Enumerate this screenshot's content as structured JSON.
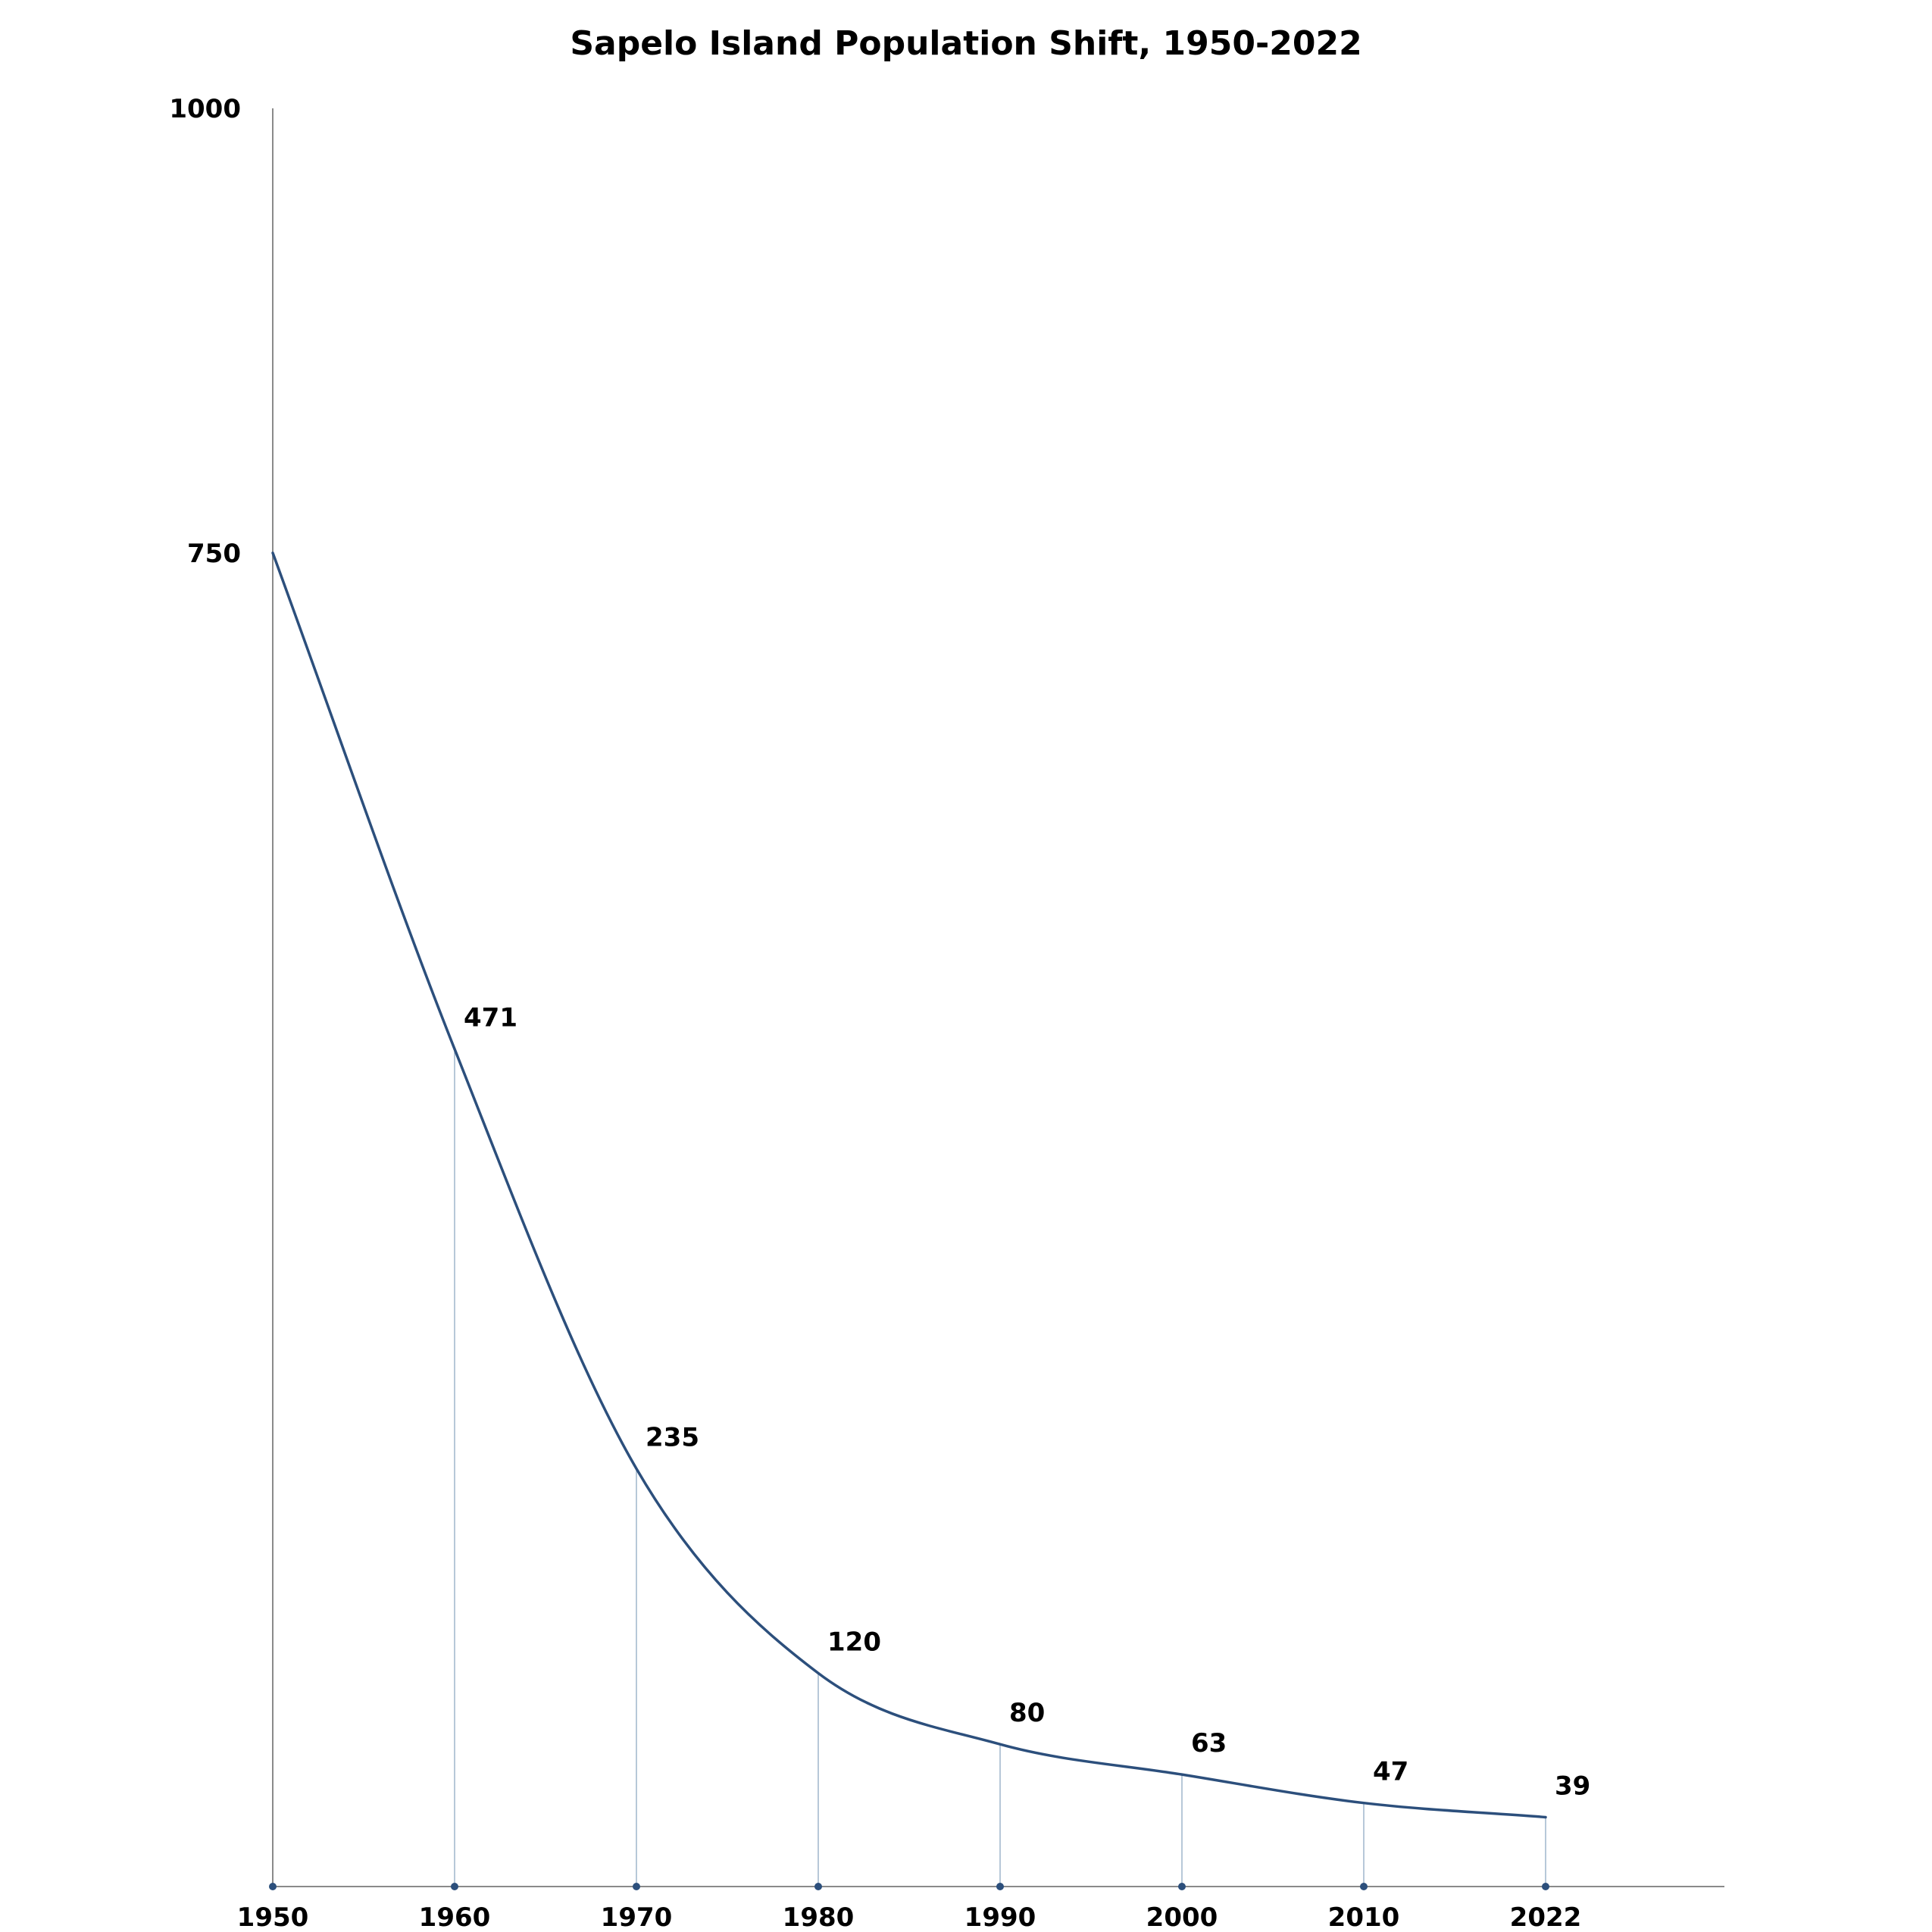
{
  "chart_data": {
    "type": "line",
    "title": "Sapelo Island Population Shift, 1950-2022",
    "xlabel": "",
    "ylabel": "",
    "x": [
      1950,
      1960,
      1970,
      1980,
      1990,
      2000,
      2010,
      2022
    ],
    "x_tick_labels": [
      "1950",
      "1960",
      "1970",
      "1980",
      "1990",
      "2000",
      "2010",
      "2022"
    ],
    "y_ticks": [
      750,
      1000
    ],
    "y_tick_labels": [
      "750",
      "1000"
    ],
    "ylim": [
      0,
      1000
    ],
    "series": [
      {
        "values": [
          750,
          471,
          235,
          120,
          80,
          63,
          47,
          39
        ],
        "data_labels": [
          "",
          "471",
          "235",
          "120",
          "80",
          "63",
          "47",
          "39"
        ]
      }
    ],
    "grid": false,
    "legend": "none",
    "colors": {
      "line": "#2c4f7c",
      "drop_lines": "#9fb6cc",
      "axis": "#8a8a8a",
      "markers": "#2c4f7c"
    }
  }
}
